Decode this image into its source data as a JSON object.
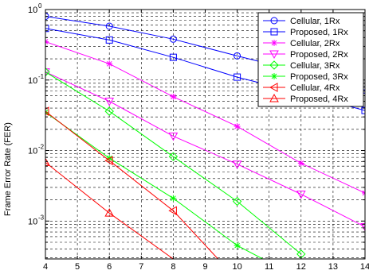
{
  "chart_data": {
    "type": "line",
    "ylabel": "Frame Error Rate (FER)",
    "xlabel": "",
    "x_ticks": [
      4,
      5,
      6,
      7,
      8,
      9,
      10,
      11,
      12,
      13,
      14
    ],
    "y_tick_labels": [
      {
        "value": 1,
        "base": "10",
        "exp": "0"
      },
      {
        "value": 0.1,
        "base": "10",
        "exp": "-1"
      },
      {
        "value": 0.01,
        "base": "10",
        "exp": "-2"
      },
      {
        "value": 0.001,
        "base": "10",
        "exp": "-3"
      }
    ],
    "xlim": [
      4,
      14
    ],
    "ylim": [
      0.00029,
      1
    ],
    "y_scale": "log",
    "grid": true,
    "legend_position": "top-right",
    "series": [
      {
        "name": "Cellular, 1Rx",
        "color": "#0000ff",
        "marker": "circle",
        "x": [
          4,
          6,
          8,
          10,
          12,
          14
        ],
        "y": [
          0.8,
          0.58,
          0.38,
          0.22,
          0.13,
          0.072
        ]
      },
      {
        "name": "Proposed, 1Rx",
        "color": "#0000ff",
        "marker": "square",
        "x": [
          4,
          6,
          8,
          10,
          12,
          14
        ],
        "y": [
          0.54,
          0.37,
          0.21,
          0.11,
          0.065,
          0.037
        ]
      },
      {
        "name": "Cellular, 2Rx",
        "color": "#ff00ff",
        "marker": "star",
        "x": [
          4,
          6,
          8,
          10,
          12,
          14
        ],
        "y": [
          0.35,
          0.17,
          0.058,
          0.022,
          0.0066,
          0.0025
        ]
      },
      {
        "name": "Proposed, 2Rx",
        "color": "#ff00ff",
        "marker": "triangle-down",
        "x": [
          4,
          6,
          8,
          10,
          12,
          14
        ],
        "y": [
          0.13,
          0.05,
          0.016,
          0.0064,
          0.0024,
          0.00083
        ]
      },
      {
        "name": "Cellular, 3Rx",
        "color": "#00ff00",
        "marker": "diamond",
        "x": [
          4,
          6,
          8,
          10,
          12
        ],
        "y": [
          0.13,
          0.036,
          0.0082,
          0.0019,
          0.00034
        ]
      },
      {
        "name": "Proposed, 3Rx",
        "color": "#00ff00",
        "marker": "star",
        "x": [
          4,
          6,
          8,
          10,
          10.8
        ],
        "y": [
          0.035,
          0.0078,
          0.0021,
          0.00045,
          0.00029
        ]
      },
      {
        "name": "Cellular, 4Rx",
        "color": "#ff0000",
        "marker": "triangle-left",
        "x": [
          4,
          6,
          8,
          9.4
        ],
        "y": [
          0.036,
          0.0072,
          0.0014,
          0.00029
        ]
      },
      {
        "name": "Proposed, 4Rx",
        "color": "#ff0000",
        "marker": "triangle-up",
        "x": [
          4,
          6,
          8,
          9.4
        ],
        "y": [
          0.0068,
          0.0013,
          0.00029,
          0.00029
        ]
      }
    ]
  }
}
